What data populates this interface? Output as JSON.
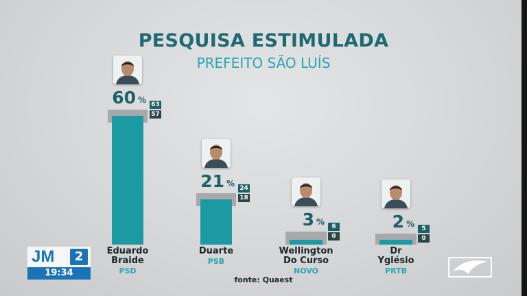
{
  "chart_data": {
    "type": "bar",
    "title": "PESQUISA ESTIMULADA",
    "subtitle": "PREFEITO SÃO LUÍS",
    "source": "fonte: Quaest",
    "percent_symbol": "%",
    "ylim": [
      0,
      100
    ],
    "candidates": [
      {
        "name_line1": "Eduardo",
        "name_line2": "Braide",
        "party": "PSD",
        "value": 60,
        "value_label": "60",
        "upper": 63,
        "upper_label": "63",
        "lower": 57,
        "lower_label": "57"
      },
      {
        "name_line1": "Duarte",
        "name_line2": "",
        "party": "PSB",
        "value": 21,
        "value_label": "21",
        "upper": 24,
        "upper_label": "24",
        "lower": 18,
        "lower_label": "18"
      },
      {
        "name_line1": "Wellington",
        "name_line2": "Do Curso",
        "party": "NOVO",
        "value": 3,
        "value_label": "3",
        "upper": 6,
        "upper_label": "6",
        "lower": 0,
        "lower_label": "0"
      },
      {
        "name_line1": "Dr",
        "name_line2": "Yglésio",
        "party": "PRTB",
        "value": 2,
        "value_label": "2",
        "upper": 5,
        "upper_label": "5",
        "lower": 0,
        "lower_label": "0"
      }
    ],
    "colors": {
      "bar": "#1b9aa3",
      "range": "#a8a9aa",
      "title": "#1d6a72",
      "subtitle": "#2aa6b0"
    }
  },
  "broadcast": {
    "logo_text": "JM",
    "logo_number": "2",
    "time": "19:34"
  },
  "icons": {
    "candidate_photo": "person-photo-icon",
    "watermark": "network-bird-logo-icon"
  }
}
